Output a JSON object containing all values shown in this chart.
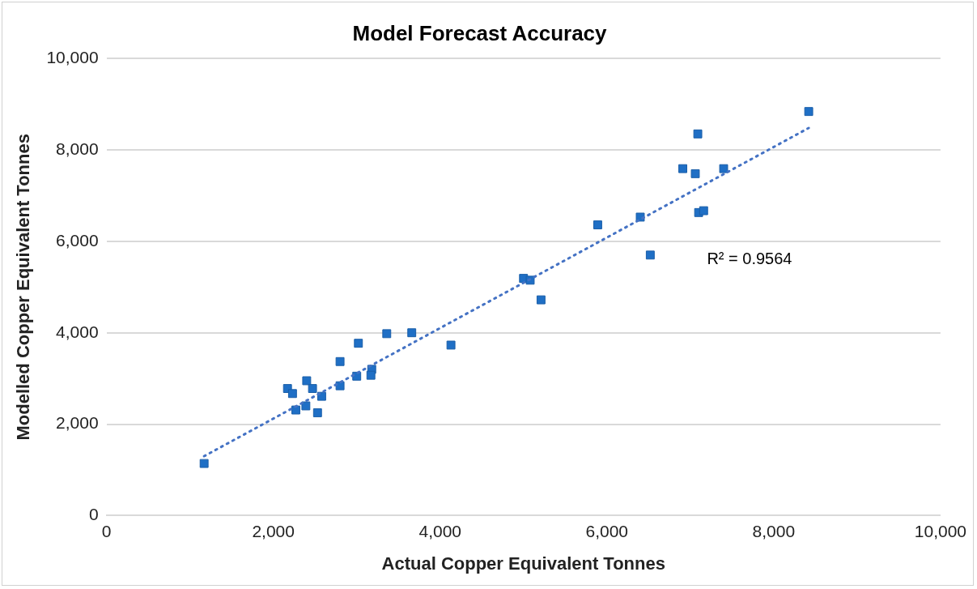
{
  "chart_data": {
    "type": "scatter",
    "title": "Model Forecast Accuracy",
    "xlabel": "Actual Copper Equivalent Tonnes",
    "ylabel": "Modelled Copper Equivalent Tonnes",
    "xlim": [
      0,
      10000
    ],
    "ylim": [
      0,
      10000
    ],
    "xticks": [
      {
        "value": 0,
        "label": "0"
      },
      {
        "value": 2000,
        "label": "2,000"
      },
      {
        "value": 4000,
        "label": "4,000"
      },
      {
        "value": 6000,
        "label": "6,000"
      },
      {
        "value": 8000,
        "label": "8,000"
      },
      {
        "value": 10000,
        "label": "10,000"
      }
    ],
    "yticks": [
      {
        "value": 0,
        "label": "0"
      },
      {
        "value": 2000,
        "label": "2,000"
      },
      {
        "value": 4000,
        "label": "4,000"
      },
      {
        "value": 6000,
        "label": "6,000"
      },
      {
        "value": 8000,
        "label": "8,000"
      },
      {
        "value": 10000,
        "label": "10,000"
      }
    ],
    "grid": "y",
    "legend": false,
    "annotations": [
      "R² = 0.9564"
    ],
    "series": [
      {
        "color": "#1f6fc5",
        "marker": "square",
        "x": [
          1170,
          2170,
          2230,
          2400,
          2470,
          2580,
          2270,
          2390,
          2530,
          2800,
          2800,
          3020,
          3000,
          3180,
          3170,
          3360,
          3660,
          4130,
          5000,
          5080,
          5210,
          5890,
          6400,
          6520,
          7100,
          7160,
          6910,
          7060,
          7090,
          7400,
          8420
        ],
        "values": [
          1140,
          2780,
          2670,
          2950,
          2780,
          2610,
          2310,
          2400,
          2250,
          3370,
          2840,
          3770,
          3050,
          3200,
          3070,
          3980,
          4000,
          3730,
          5190,
          5150,
          4720,
          6360,
          6530,
          5700,
          6630,
          6670,
          7590,
          7480,
          8350,
          7590,
          8840
        ]
      },
      {
        "type": "line",
        "color": "#4472c4",
        "line_style": "dotted",
        "marker": "none",
        "x": [
          1170,
          8420
        ],
        "values": [
          1300,
          8480
        ]
      }
    ]
  }
}
